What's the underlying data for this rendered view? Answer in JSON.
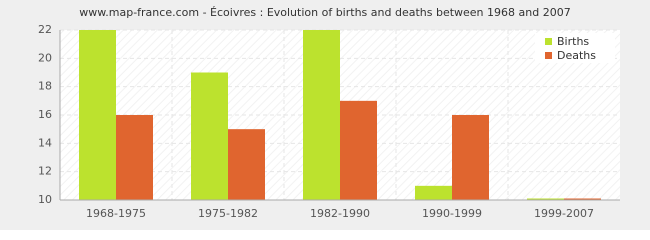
{
  "chart_data": {
    "type": "bar",
    "title": "www.map-france.com - Écoivres : Evolution of births and deaths between 1968 and 2007",
    "categories": [
      "1968-1975",
      "1975-1982",
      "1982-1990",
      "1990-1999",
      "1999-2007"
    ],
    "series": [
      {
        "name": "Births",
        "color": "#bce22e",
        "values": [
          22,
          19,
          22,
          11,
          10
        ]
      },
      {
        "name": "Deaths",
        "color": "#e0652f",
        "values": [
          16,
          15,
          17,
          16,
          10
        ]
      }
    ],
    "ylim": [
      10,
      22
    ],
    "yticks": [
      10,
      12,
      14,
      16,
      18,
      20,
      22
    ],
    "grid": true,
    "legend": "top-right"
  }
}
